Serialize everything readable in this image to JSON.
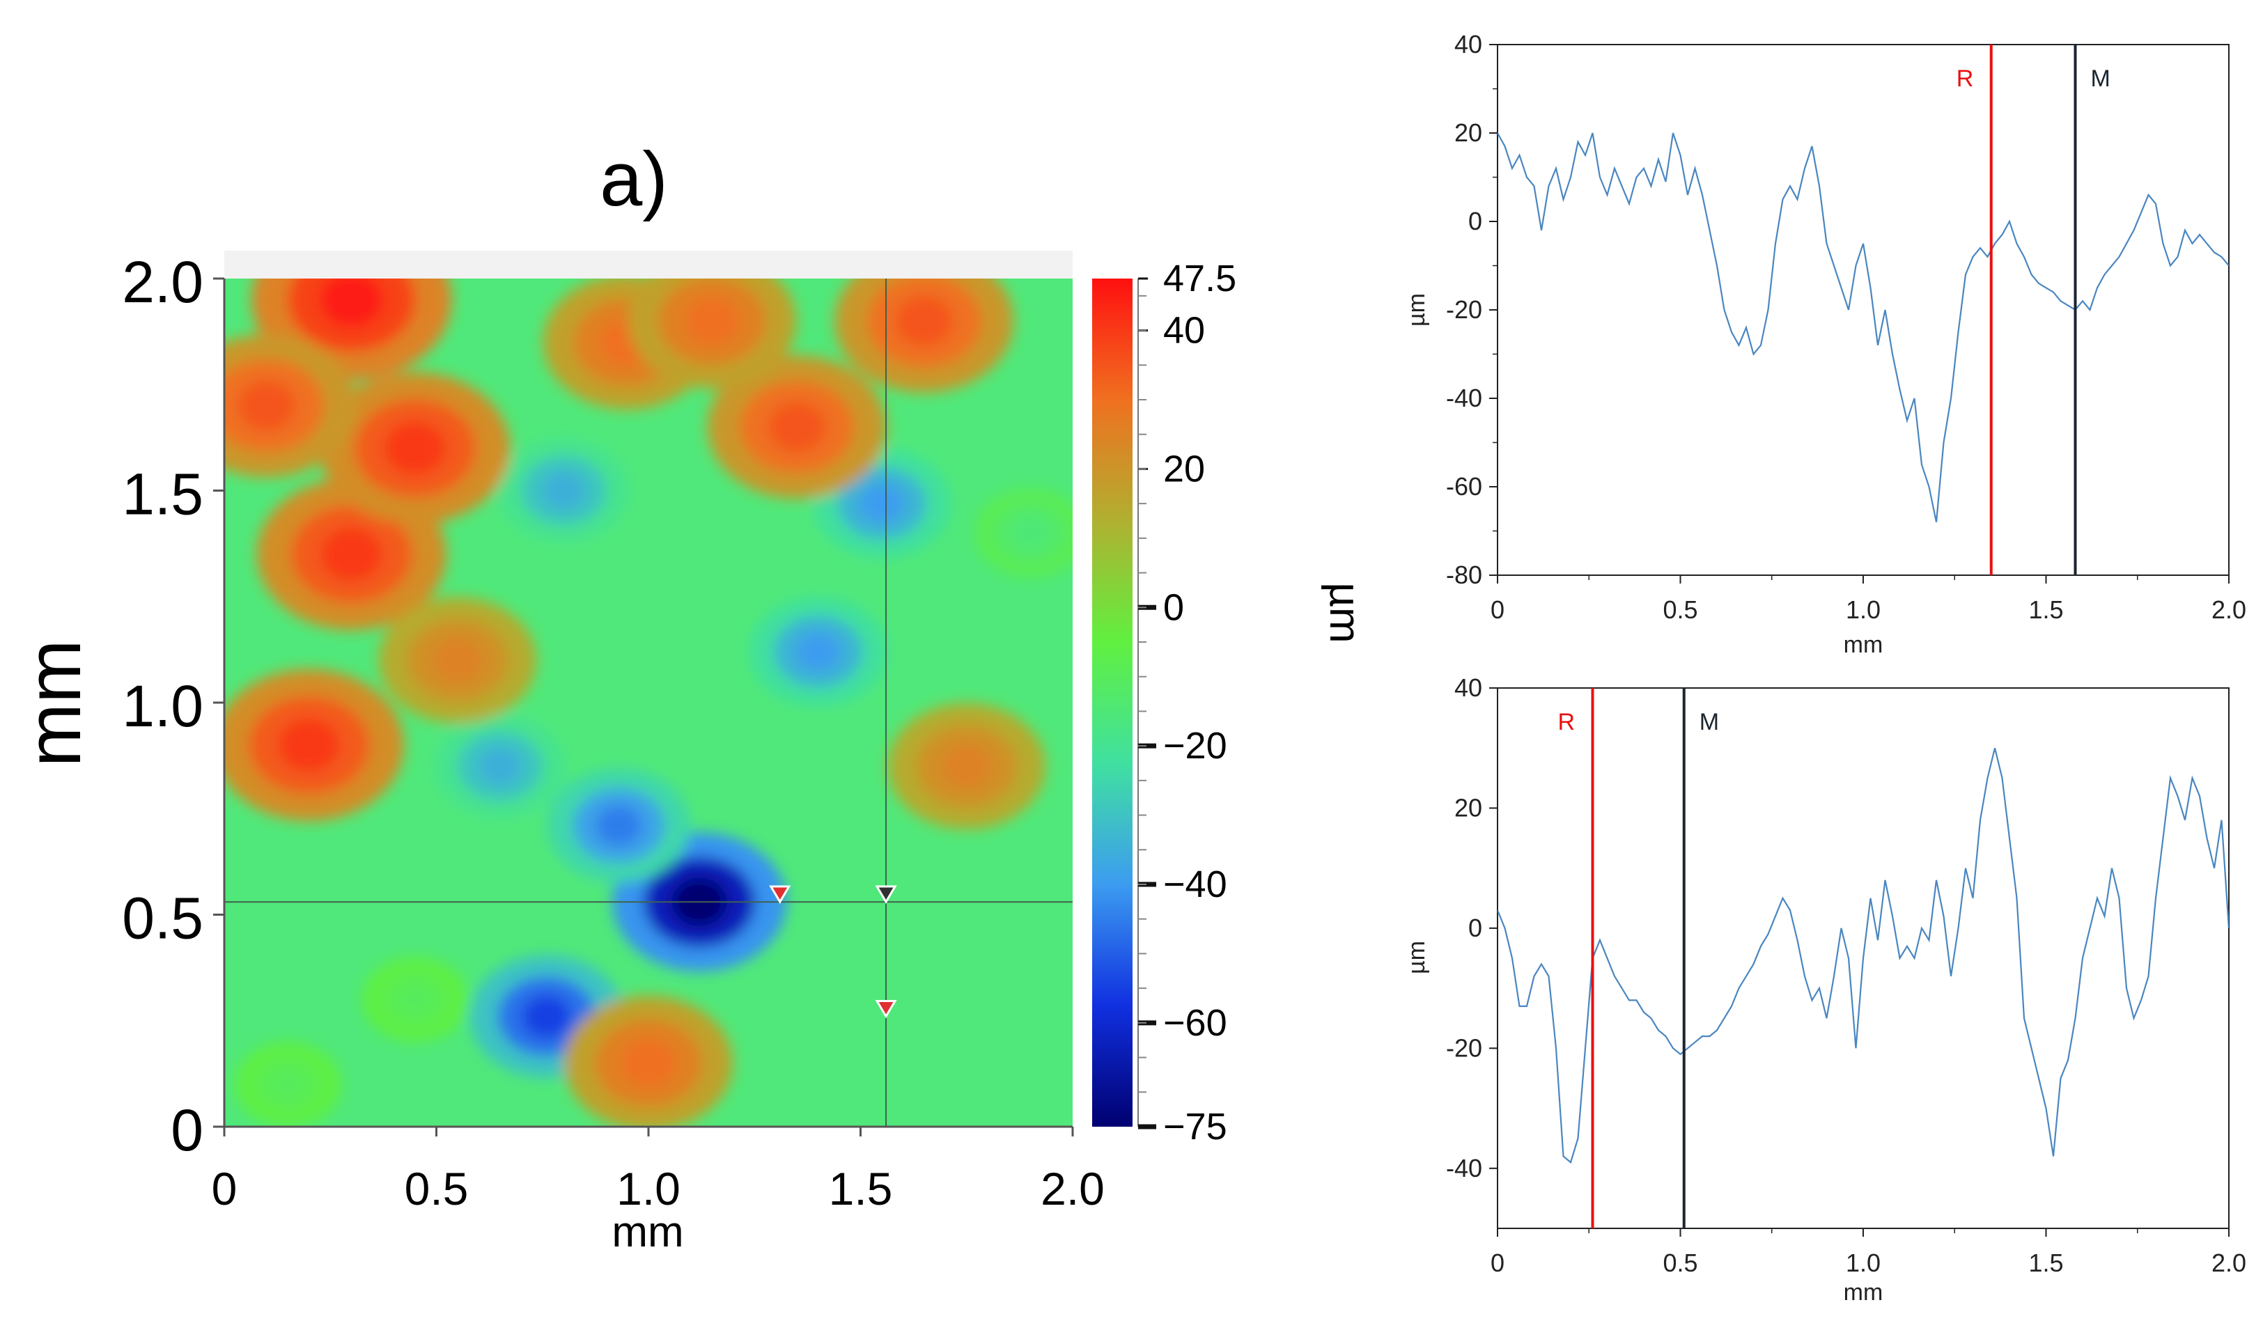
{
  "chart_data": [
    {
      "type": "heatmap",
      "title": "a)",
      "xlabel": "mm",
      "ylabel": "mm",
      "xlim": [
        0,
        2.0
      ],
      "ylim": [
        0,
        2.0
      ],
      "x_ticks": [
        "0",
        "0.5",
        "1.0",
        "1.5",
        "2.0"
      ],
      "y_ticks": [
        "0",
        "0.5",
        "1.0",
        "1.5",
        "2.0"
      ],
      "colorbar": {
        "label": "µm",
        "range": [
          -75,
          47.5
        ],
        "ticks": [
          "47.5",
          "40",
          "20",
          "0",
          "−20",
          "−40",
          "−60",
          "−75"
        ],
        "colors": [
          "#000070",
          "#1030e0",
          "#3c9cf0",
          "#40e0a0",
          "#60f040",
          "#b0b030",
          "#f07020",
          "#ff1010"
        ]
      },
      "crosshair": {
        "x": 1.56,
        "y": 0.53
      },
      "markers": [
        {
          "x": 1.31,
          "y": 0.55,
          "color": "#e03030"
        },
        {
          "x": 1.56,
          "y": 0.55,
          "color": "#303030"
        },
        {
          "x": 1.56,
          "y": 0.28,
          "color": "#e03030"
        }
      ],
      "features": [
        {
          "x": 1.12,
          "y": 0.53,
          "value": -75
        },
        {
          "x": 0.76,
          "y": 0.26,
          "value": -55
        },
        {
          "x": 0.93,
          "y": 0.71,
          "value": -45
        },
        {
          "x": 1.4,
          "y": 1.12,
          "value": -40
        },
        {
          "x": 0.8,
          "y": 1.5,
          "value": -35
        },
        {
          "x": 1.55,
          "y": 1.47,
          "value": -40
        },
        {
          "x": 0.65,
          "y": 0.85,
          "value": -35
        },
        {
          "x": 0.3,
          "y": 1.35,
          "value": 40
        },
        {
          "x": 0.2,
          "y": 0.9,
          "value": 40
        },
        {
          "x": 0.45,
          "y": 1.6,
          "value": 40
        },
        {
          "x": 1.35,
          "y": 1.65,
          "value": 35
        },
        {
          "x": 1.65,
          "y": 1.9,
          "value": 35
        },
        {
          "x": 0.3,
          "y": 1.95,
          "value": 45
        },
        {
          "x": 0.95,
          "y": 1.85,
          "value": 30
        },
        {
          "x": 1.15,
          "y": 1.9,
          "value": 30
        },
        {
          "x": 1.75,
          "y": 0.85,
          "value": 25
        },
        {
          "x": 1.0,
          "y": 0.15,
          "value": 30
        },
        {
          "x": 0.1,
          "y": 1.7,
          "value": 35
        },
        {
          "x": 0.55,
          "y": 1.1,
          "value": 25
        },
        {
          "x": 0.15,
          "y": 0.1,
          "value": -10
        },
        {
          "x": 0.45,
          "y": 0.3,
          "value": -10
        },
        {
          "x": 1.9,
          "y": 1.4,
          "value": -15
        }
      ]
    },
    {
      "type": "line",
      "xlabel": "mm",
      "ylabel": "µm",
      "xlim": [
        0,
        2.0
      ],
      "ylim": [
        -80,
        40
      ],
      "x_ticks": [
        "0",
        "0.5",
        "1.0",
        "1.5",
        "2.0"
      ],
      "y_ticks": [
        "40",
        "20",
        "0",
        "-20",
        "-40",
        "-60",
        "-80"
      ],
      "vlines": [
        {
          "label": "R",
          "x": 1.35,
          "color": "#e81010"
        },
        {
          "label": "M",
          "x": 1.58,
          "color": "#1a2530"
        }
      ],
      "x": [
        0,
        0.02,
        0.04,
        0.06,
        0.08,
        0.1,
        0.12,
        0.14,
        0.16,
        0.18,
        0.2,
        0.22,
        0.24,
        0.26,
        0.28,
        0.3,
        0.32,
        0.34,
        0.36,
        0.38,
        0.4,
        0.42,
        0.44,
        0.46,
        0.48,
        0.5,
        0.52,
        0.54,
        0.56,
        0.58,
        0.6,
        0.62,
        0.64,
        0.66,
        0.68,
        0.7,
        0.72,
        0.74,
        0.76,
        0.78,
        0.8,
        0.82,
        0.84,
        0.86,
        0.88,
        0.9,
        0.92,
        0.94,
        0.96,
        0.98,
        1.0,
        1.02,
        1.04,
        1.06,
        1.08,
        1.1,
        1.12,
        1.14,
        1.16,
        1.18,
        1.2,
        1.22,
        1.24,
        1.26,
        1.28,
        1.3,
        1.32,
        1.34,
        1.36,
        1.38,
        1.4,
        1.42,
        1.44,
        1.46,
        1.48,
        1.5,
        1.52,
        1.54,
        1.56,
        1.58,
        1.6,
        1.62,
        1.64,
        1.66,
        1.68,
        1.7,
        1.72,
        1.74,
        1.76,
        1.78,
        1.8,
        1.82,
        1.84,
        1.86,
        1.88,
        1.9,
        1.92,
        1.94,
        1.96,
        1.98,
        2.0
      ],
      "y": [
        20,
        17,
        12,
        15,
        10,
        8,
        -2,
        8,
        12,
        5,
        10,
        18,
        15,
        20,
        10,
        6,
        12,
        8,
        4,
        10,
        12,
        8,
        14,
        9,
        20,
        15,
        6,
        12,
        6,
        -2,
        -10,
        -20,
        -25,
        -28,
        -24,
        -30,
        -28,
        -20,
        -5,
        5,
        8,
        5,
        12,
        17,
        8,
        -5,
        -10,
        -15,
        -20,
        -10,
        -5,
        -15,
        -28,
        -20,
        -30,
        -38,
        -45,
        -40,
        -55,
        -60,
        -68,
        -50,
        -40,
        -25,
        -12,
        -8,
        -6,
        -8,
        -5,
        -3,
        0,
        -5,
        -8,
        -12,
        -14,
        -15,
        -16,
        -18,
        -19,
        -20,
        -18,
        -20,
        -15,
        -12,
        -10,
        -8,
        -5,
        -2,
        2,
        6,
        4,
        -5,
        -10,
        -8,
        -2,
        -5,
        -3,
        -5,
        -7,
        -8,
        -10
      ]
    },
    {
      "type": "line",
      "xlabel": "mm",
      "ylabel": "µm",
      "xlim": [
        0,
        2.0
      ],
      "ylim": [
        -50,
        40
      ],
      "x_ticks": [
        "0",
        "0.5",
        "1.0",
        "1.5",
        "2.0"
      ],
      "y_ticks": [
        "40",
        "20",
        "0",
        "-20",
        "-40"
      ],
      "vlines": [
        {
          "label": "R",
          "x": 0.26,
          "color": "#e81010"
        },
        {
          "label": "M",
          "x": 0.51,
          "color": "#1a2530"
        }
      ],
      "x": [
        0,
        0.02,
        0.04,
        0.06,
        0.08,
        0.1,
        0.12,
        0.14,
        0.16,
        0.18,
        0.2,
        0.22,
        0.24,
        0.26,
        0.28,
        0.3,
        0.32,
        0.34,
        0.36,
        0.38,
        0.4,
        0.42,
        0.44,
        0.46,
        0.48,
        0.5,
        0.52,
        0.54,
        0.56,
        0.58,
        0.6,
        0.62,
        0.64,
        0.66,
        0.68,
        0.7,
        0.72,
        0.74,
        0.76,
        0.78,
        0.8,
        0.82,
        0.84,
        0.86,
        0.88,
        0.9,
        0.92,
        0.94,
        0.96,
        0.98,
        1.0,
        1.02,
        1.04,
        1.06,
        1.08,
        1.1,
        1.12,
        1.14,
        1.16,
        1.18,
        1.2,
        1.22,
        1.24,
        1.26,
        1.28,
        1.3,
        1.32,
        1.34,
        1.36,
        1.38,
        1.4,
        1.42,
        1.44,
        1.46,
        1.48,
        1.5,
        1.52,
        1.54,
        1.56,
        1.58,
        1.6,
        1.62,
        1.64,
        1.66,
        1.68,
        1.7,
        1.72,
        1.74,
        1.76,
        1.78,
        1.8,
        1.82,
        1.84,
        1.86,
        1.88,
        1.9,
        1.92,
        1.94,
        1.96,
        1.98,
        2.0
      ],
      "y": [
        3,
        0,
        -5,
        -13,
        -13,
        -8,
        -6,
        -8,
        -20,
        -38,
        -39,
        -35,
        -20,
        -5,
        -2,
        -5,
        -8,
        -10,
        -12,
        -12,
        -14,
        -15,
        -17,
        -18,
        -20,
        -21,
        -20,
        -19,
        -18,
        -18,
        -17,
        -15,
        -13,
        -10,
        -8,
        -6,
        -3,
        -1,
        2,
        5,
        3,
        -2,
        -8,
        -12,
        -10,
        -15,
        -8,
        0,
        -5,
        -20,
        -5,
        5,
        -2,
        8,
        2,
        -5,
        -3,
        -5,
        0,
        -2,
        8,
        2,
        -8,
        0,
        10,
        5,
        18,
        25,
        30,
        25,
        15,
        5,
        -15,
        -20,
        -25,
        -30,
        -38,
        -25,
        -22,
        -15,
        -5,
        0,
        5,
        2,
        10,
        5,
        -10,
        -15,
        -12,
        -8,
        5,
        15,
        25,
        22,
        18,
        25,
        22,
        15,
        10,
        18,
        0
      ]
    }
  ]
}
